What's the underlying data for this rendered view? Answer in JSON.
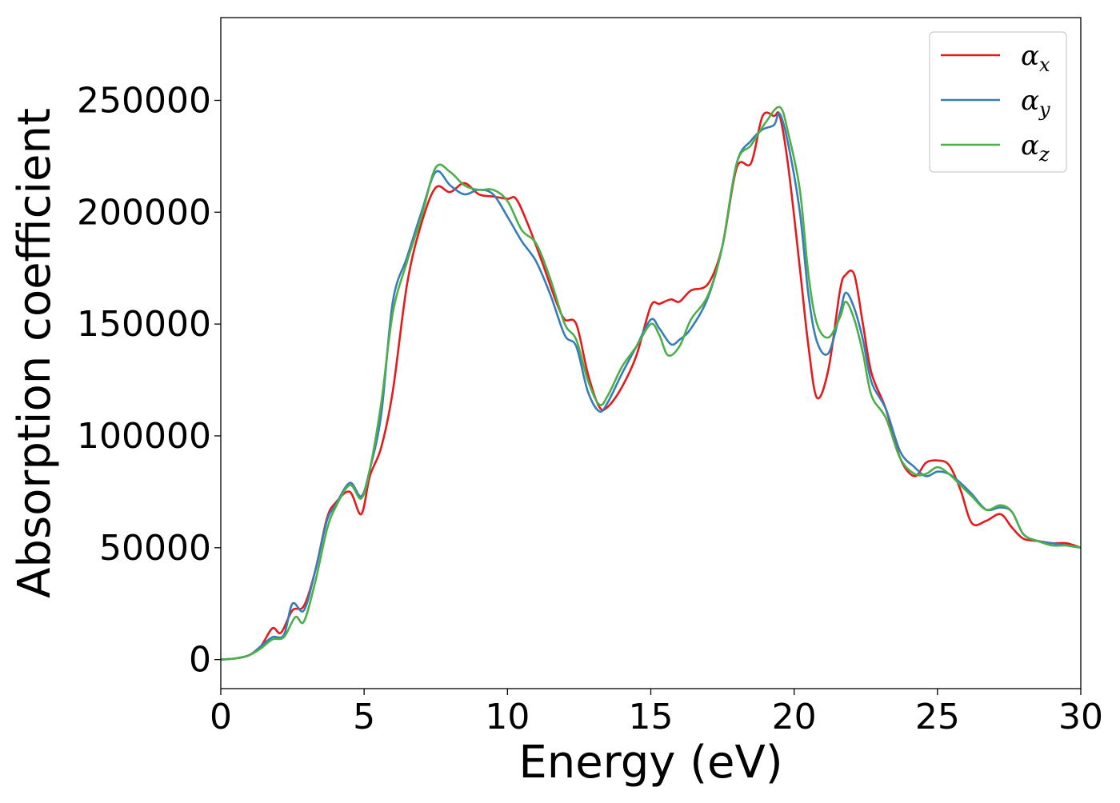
{
  "chart_data": {
    "type": "line",
    "xlabel": "Energy (eV)",
    "ylabel": "Absorption coefficient",
    "xlim": [
      0,
      30
    ],
    "ylim": [
      -13000,
      287000
    ],
    "xticks": [
      0,
      5,
      10,
      15,
      20,
      25,
      30
    ],
    "xtick_labels": [
      "0",
      "5",
      "10",
      "15",
      "20",
      "25",
      "30"
    ],
    "yticks": [
      0,
      50000,
      100000,
      150000,
      200000,
      250000
    ],
    "ytick_labels": [
      "0",
      "50000",
      "100000",
      "150000",
      "200000",
      "250000"
    ],
    "grid": false,
    "legend_position": "top-right",
    "series": [
      {
        "name": "α",
        "subscript": "x",
        "color": "#e41a1c",
        "x": [
          0,
          0.5,
          1.0,
          1.4,
          1.8,
          2.1,
          2.5,
          2.9,
          3.3,
          3.7,
          4.0,
          4.5,
          4.9,
          5.2,
          5.6,
          6.0,
          6.5,
          7.0,
          7.5,
          8.0,
          8.5,
          9.0,
          9.5,
          10.0,
          10.3,
          10.7,
          11.2,
          11.7,
          12.0,
          12.4,
          12.8,
          13.2,
          13.5,
          14.0,
          14.5,
          15.0,
          15.3,
          15.7,
          16.0,
          16.4,
          17.0,
          17.5,
          18.0,
          18.5,
          18.9,
          19.3,
          19.5,
          19.8,
          20.2,
          20.5,
          20.8,
          21.2,
          21.6,
          21.8,
          22.1,
          22.4,
          22.7,
          23.2,
          23.7,
          24.2,
          24.6,
          25.0,
          25.4,
          25.8,
          26.2,
          26.7,
          27.2,
          27.6,
          28.0,
          28.5,
          29.0,
          29.5,
          30.0
        ],
        "values": [
          0,
          500,
          2000,
          6000,
          14000,
          12000,
          22000,
          24000,
          40000,
          63000,
          70000,
          75000,
          65000,
          82000,
          95000,
          120000,
          168000,
          195000,
          211000,
          209000,
          213000,
          208000,
          207000,
          206000,
          206000,
          195000,
          178000,
          160000,
          152000,
          150000,
          128000,
          113000,
          113000,
          122000,
          136000,
          158000,
          159000,
          161000,
          160000,
          165000,
          168000,
          185000,
          220000,
          222000,
          243000,
          243000,
          243000,
          220000,
          175000,
          140000,
          117000,
          130000,
          165000,
          172000,
          172000,
          150000,
          128000,
          112000,
          90000,
          82000,
          88000,
          89000,
          87000,
          76000,
          61000,
          62000,
          65000,
          59000,
          54000,
          53000,
          52000,
          52000,
          50000
        ]
      },
      {
        "name": "α",
        "subscript": "y",
        "color": "#377eb8",
        "x": [
          0,
          0.5,
          1.0,
          1.4,
          1.8,
          2.2,
          2.5,
          2.9,
          3.3,
          3.7,
          4.0,
          4.5,
          4.9,
          5.2,
          5.6,
          6.0,
          6.5,
          7.0,
          7.5,
          8.0,
          8.5,
          9.0,
          9.5,
          10.0,
          10.5,
          11.0,
          11.5,
          12.0,
          12.4,
          12.8,
          13.2,
          13.5,
          14.0,
          14.5,
          15.0,
          15.3,
          15.7,
          16.0,
          16.4,
          17.0,
          17.5,
          18.0,
          18.5,
          18.9,
          19.3,
          19.5,
          19.8,
          20.2,
          20.5,
          20.8,
          21.2,
          21.6,
          21.8,
          22.1,
          22.4,
          22.7,
          23.2,
          23.7,
          24.2,
          24.6,
          25.0,
          25.4,
          25.8,
          26.2,
          26.7,
          27.2,
          27.6,
          28.0,
          28.5,
          29.0,
          29.5,
          30.0
        ],
        "values": [
          0,
          500,
          2000,
          6000,
          10000,
          11000,
          25000,
          22000,
          40000,
          62000,
          69000,
          79000,
          73000,
          85000,
          110000,
          160000,
          180000,
          200000,
          218000,
          212000,
          208000,
          210000,
          208000,
          198000,
          187000,
          178000,
          163000,
          145000,
          140000,
          120000,
          111000,
          115000,
          128000,
          140000,
          152000,
          148000,
          141000,
          143000,
          148000,
          162000,
          185000,
          222000,
          232000,
          237000,
          239000,
          244000,
          230000,
          200000,
          163000,
          142000,
          137000,
          155000,
          164000,
          157000,
          143000,
          124000,
          112000,
          93000,
          86000,
          82000,
          84000,
          83000,
          79000,
          74000,
          67000,
          68000,
          66000,
          56000,
          53000,
          52000,
          51000,
          50000
        ]
      },
      {
        "name": "α",
        "subscript": "z",
        "color": "#4daf4a",
        "x": [
          0,
          0.5,
          1.0,
          1.4,
          1.8,
          2.2,
          2.6,
          2.9,
          3.3,
          3.7,
          4.0,
          4.5,
          4.9,
          5.2,
          5.6,
          6.0,
          6.5,
          7.0,
          7.5,
          8.0,
          8.5,
          9.0,
          9.5,
          10.0,
          10.5,
          11.0,
          11.5,
          12.0,
          12.4,
          12.8,
          13.2,
          13.5,
          14.0,
          14.5,
          15.0,
          15.3,
          15.6,
          16.0,
          16.4,
          17.0,
          17.5,
          18.0,
          18.5,
          19.0,
          19.5,
          19.8,
          20.2,
          20.5,
          20.8,
          21.2,
          21.6,
          21.8,
          22.1,
          22.4,
          22.7,
          23.2,
          23.7,
          24.2,
          24.6,
          25.0,
          25.4,
          25.8,
          26.2,
          26.7,
          27.2,
          27.6,
          28.0,
          28.5,
          29.0,
          29.5,
          30.0
        ],
        "values": [
          0,
          500,
          2000,
          5000,
          9000,
          10000,
          19000,
          17000,
          35000,
          58000,
          68000,
          78000,
          72000,
          85000,
          115000,
          155000,
          178000,
          198000,
          220000,
          218000,
          212000,
          210000,
          210000,
          205000,
          192000,
          186000,
          170000,
          150000,
          143000,
          125000,
          114000,
          118000,
          131000,
          140000,
          150000,
          145000,
          136000,
          140000,
          152000,
          163000,
          185000,
          222000,
          230000,
          240000,
          247000,
          235000,
          210000,
          172000,
          150000,
          144000,
          153000,
          160000,
          152000,
          137000,
          118000,
          108000,
          90000,
          83000,
          83000,
          86000,
          83000,
          78000,
          73000,
          67000,
          69000,
          66000,
          56000,
          53000,
          51000,
          51000,
          50000
        ]
      }
    ]
  }
}
